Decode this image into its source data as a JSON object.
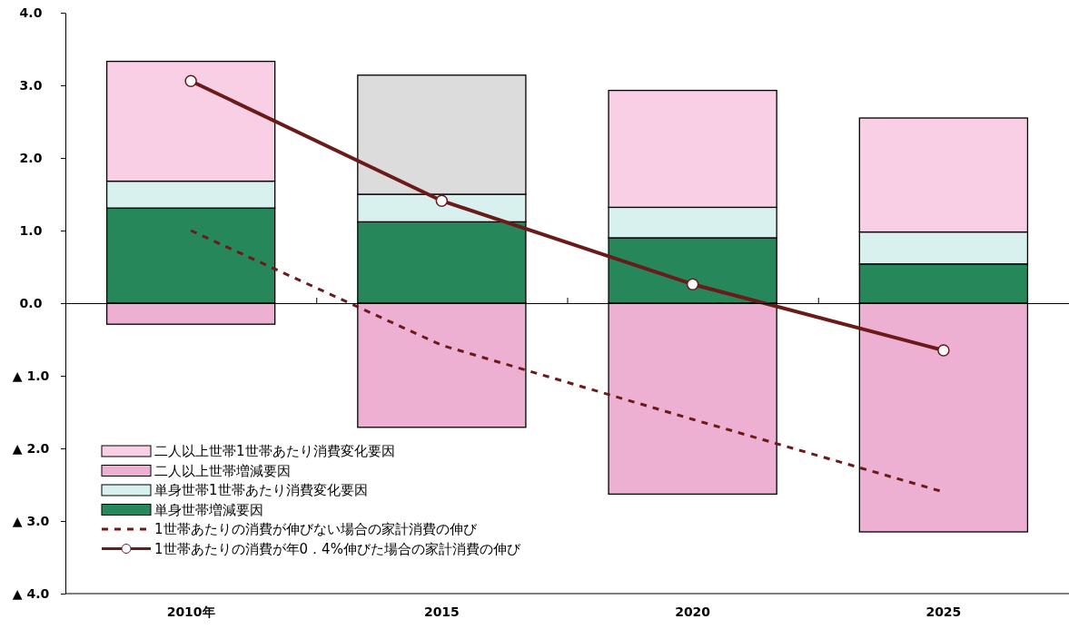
{
  "chart_data": {
    "type": "bar",
    "stacked": true,
    "categories": [
      "2010年",
      "2015",
      "2020",
      "2025"
    ],
    "ylim": [
      -4,
      4
    ],
    "yticks": [
      {
        "value": -4,
        "label": "▲ 4.0"
      },
      {
        "value": -3,
        "label": "▲ 3.0"
      },
      {
        "value": -2,
        "label": "▲ 2.0"
      },
      {
        "value": -1,
        "label": "▲ 1.0"
      },
      {
        "value": 0,
        "label": "0.0"
      },
      {
        "value": 1,
        "label": "1.0"
      },
      {
        "value": 2,
        "label": "2.0"
      },
      {
        "value": 3,
        "label": "3.0"
      },
      {
        "value": 4,
        "label": "4.0"
      }
    ],
    "legend": "bottom left",
    "series": [
      {
        "name": "単身世帯増減要因",
        "color": "#26875a",
        "values": [
          1.31,
          1.12,
          0.9,
          0.54
        ]
      },
      {
        "name": "単身世帯1世帯あたり消費変化要因",
        "color": "#d8f0ee",
        "values": [
          0.37,
          0.38,
          0.42,
          0.44
        ]
      },
      {
        "name": "二人以上世帯増減要因",
        "color": "#eeb0d2",
        "values": [
          -0.29,
          -1.71,
          -2.63,
          -3.15
        ]
      },
      {
        "name": "二人以上世帯1世帯あたり消費変化要因",
        "color": "#f8cfe4",
        "colors": [
          "#f8cfe4",
          "#dcdcdc",
          "#f8cfe4",
          "#f8cfe4"
        ],
        "values": [
          1.65,
          1.64,
          1.61,
          1.57
        ]
      },
      {
        "name": "1世帯あたりの消費が伸びない場合の家計消費の伸び",
        "type": "line",
        "color": "#6b1a1a",
        "line_style": "dashed",
        "marker": "none",
        "values": [
          1.0,
          -0.58,
          -1.6,
          -2.6
        ]
      },
      {
        "name": "1世帯あたりの消費が年0．4%伸びた場合の家計消費の伸び",
        "type": "line",
        "color": "#6b1a1a",
        "line_style": "solid",
        "marker": "circle",
        "values": [
          3.06,
          1.41,
          0.26,
          -0.65
        ]
      }
    ]
  }
}
